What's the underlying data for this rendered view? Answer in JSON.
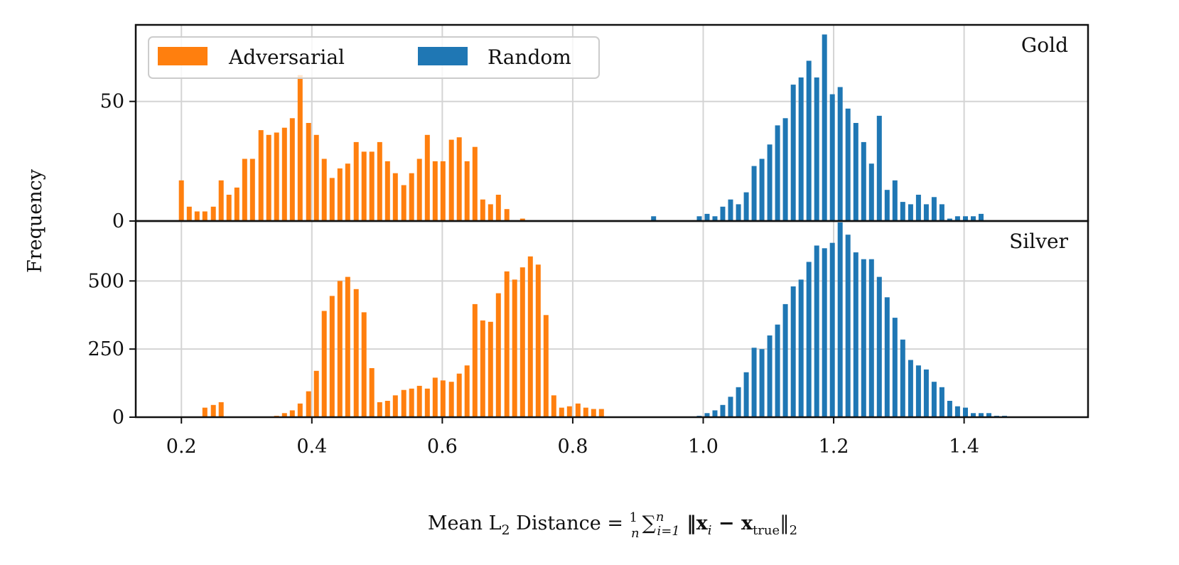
{
  "chart_data": {
    "type": "bar",
    "ylabel": "Frequency",
    "xlabel": {
      "prefix": "Mean L",
      "sub": "2",
      "rest": " Distance = ",
      "frac_num": "1",
      "frac_den": "n",
      "sum": "∑",
      "sum_sub": "i=1",
      "sum_sup": "n",
      "norm_open": " ‖x",
      "norm_sub1": "i",
      "minus": " − x",
      "norm_sub2": "true",
      "norm_close": "‖",
      "norm_sub3": "2"
    },
    "xlim": [
      0.13,
      1.59
    ],
    "xticks": [
      0.2,
      0.4,
      0.6,
      0.8,
      1.0,
      1.2,
      1.4
    ],
    "xtick_labels": [
      "0.2",
      "0.4",
      "0.6",
      "0.8",
      "1.0",
      "1.2",
      "1.4"
    ],
    "grid": true,
    "legend": {
      "placement": "top-left",
      "entries": [
        {
          "name": "Adversarial",
          "color": "#ff7f0e"
        },
        {
          "name": "Random",
          "color": "#1f77b4"
        }
      ]
    },
    "panels": [
      {
        "label": "Gold",
        "ylim": [
          0,
          82
        ],
        "yticks": [
          0,
          50
        ],
        "ytick_labels": [
          "0",
          "50"
        ],
        "series": [
          {
            "name": "Adversarial",
            "color": "#ff7f0e",
            "x": [
              0.2,
              0.212,
              0.224,
              0.236,
              0.249,
              0.261,
              0.273,
              0.285,
              0.297,
              0.309,
              0.322,
              0.334,
              0.346,
              0.358,
              0.37,
              0.382,
              0.395,
              0.407,
              0.419,
              0.431,
              0.443,
              0.455,
              0.468,
              0.48,
              0.492,
              0.504,
              0.516,
              0.528,
              0.541,
              0.553,
              0.565,
              0.577,
              0.589,
              0.601,
              0.614,
              0.626,
              0.638,
              0.65,
              0.662,
              0.674,
              0.686,
              0.699,
              0.711,
              0.723,
              0.735
            ],
            "values": [
              17,
              6,
              4,
              4,
              6,
              17,
              11,
              14,
              26,
              26,
              38,
              36,
              37,
              39,
              43,
              61,
              41,
              36,
              26,
              18,
              22,
              24,
              33,
              29,
              29,
              33,
              25,
              20,
              15,
              20,
              26,
              36,
              25,
              25,
              34,
              35,
              25,
              31,
              9,
              7,
              11,
              5,
              0,
              1,
              0
            ]
          },
          {
            "name": "Random",
            "color": "#1f77b4",
            "x": [
              0.924,
              0.994,
              1.006,
              1.018,
              1.03,
              1.042,
              1.054,
              1.066,
              1.078,
              1.09,
              1.102,
              1.114,
              1.126,
              1.138,
              1.15,
              1.162,
              1.174,
              1.186,
              1.198,
              1.21,
              1.222,
              1.234,
              1.246,
              1.258,
              1.27,
              1.282,
              1.294,
              1.306,
              1.318,
              1.33,
              1.342,
              1.354,
              1.366,
              1.378,
              1.39,
              1.402,
              1.414,
              1.426,
              1.438,
              1.45
            ],
            "values": [
              2,
              2,
              3,
              2,
              6,
              9,
              7,
              12,
              23,
              26,
              32,
              40,
              43,
              57,
              60,
              67,
              60,
              78,
              53,
              56,
              47,
              41,
              33,
              24,
              44,
              13,
              17,
              8,
              7,
              11,
              7,
              10,
              7,
              1,
              2,
              2,
              2,
              3,
              0,
              0
            ]
          }
        ]
      },
      {
        "label": "Silver",
        "ylim": [
          0,
          720
        ],
        "yticks": [
          0,
          250,
          500
        ],
        "ytick_labels": [
          "0",
          "250",
          "500"
        ],
        "series": [
          {
            "name": "Adversarial",
            "color": "#ff7f0e",
            "x": [
              0.2,
              0.212,
              0.224,
              0.236,
              0.249,
              0.261,
              0.273,
              0.285,
              0.297,
              0.309,
              0.322,
              0.334,
              0.346,
              0.358,
              0.37,
              0.382,
              0.395,
              0.407,
              0.419,
              0.431,
              0.443,
              0.455,
              0.468,
              0.48,
              0.492,
              0.504,
              0.516,
              0.528,
              0.541,
              0.553,
              0.565,
              0.577,
              0.589,
              0.601,
              0.614,
              0.626,
              0.638,
              0.65,
              0.662,
              0.674,
              0.686,
              0.699,
              0.711,
              0.723,
              0.735,
              0.747,
              0.759,
              0.771,
              0.783,
              0.795,
              0.808,
              0.82,
              0.832,
              0.844,
              0.856,
              0.868,
              0.88
            ],
            "values": [
              0,
              0,
              0,
              35,
              45,
              55,
              0,
              0,
              0,
              0,
              0,
              0,
              5,
              15,
              25,
              50,
              95,
              170,
              390,
              445,
              500,
              515,
              470,
              385,
              180,
              55,
              60,
              80,
              100,
              105,
              115,
              105,
              145,
              135,
              130,
              160,
              190,
              415,
              355,
              350,
              455,
              535,
              505,
              550,
              590,
              560,
              375,
              80,
              35,
              40,
              50,
              35,
              30,
              30,
              0,
              0,
              0
            ]
          },
          {
            "name": "Random",
            "color": "#1f77b4",
            "x": [
              0.994,
              1.006,
              1.018,
              1.03,
              1.042,
              1.054,
              1.066,
              1.078,
              1.09,
              1.102,
              1.114,
              1.126,
              1.138,
              1.15,
              1.162,
              1.174,
              1.186,
              1.198,
              1.21,
              1.222,
              1.234,
              1.246,
              1.258,
              1.27,
              1.282,
              1.294,
              1.306,
              1.318,
              1.33,
              1.342,
              1.354,
              1.366,
              1.378,
              1.39,
              1.402,
              1.414,
              1.426,
              1.438,
              1.45,
              1.462
            ],
            "values": [
              5,
              15,
              25,
              45,
              75,
              110,
              165,
              255,
              250,
              300,
              340,
              415,
              480,
              505,
              570,
              630,
              620,
              640,
              715,
              670,
              605,
              580,
              580,
              515,
              440,
              365,
              285,
              210,
              190,
              175,
              130,
              110,
              60,
              40,
              35,
              15,
              15,
              15,
              5,
              5
            ]
          }
        ]
      }
    ]
  }
}
